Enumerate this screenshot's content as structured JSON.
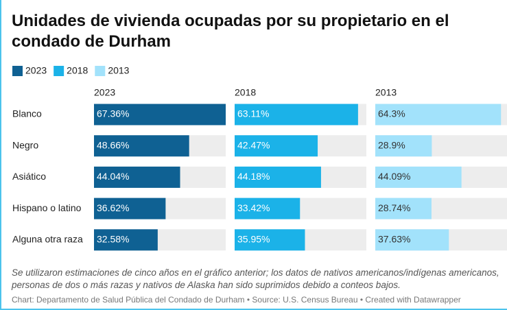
{
  "chart_data": {
    "type": "bar",
    "title": "Unidades de vivienda ocupadas por su propietario en el condado de Durham",
    "categories": [
      "Blanco",
      "Negro",
      "Asiático",
      "Hispano o latino",
      "Alguna otra raza"
    ],
    "series": [
      {
        "name": "2023",
        "color": "#0f6193",
        "values": [
          67.36,
          48.66,
          44.04,
          36.62,
          32.58
        ],
        "value_labels": [
          "67.36%",
          "48.66%",
          "44.04%",
          "36.62%",
          "32.58%"
        ]
      },
      {
        "name": "2018",
        "color": "#1bb2e8",
        "values": [
          63.11,
          42.47,
          44.18,
          33.42,
          35.95
        ],
        "value_labels": [
          "63.11%",
          "42.47%",
          "44.18%",
          "33.42%",
          "35.95%"
        ]
      },
      {
        "name": "2013",
        "color": "#a2e2fb",
        "values": [
          64.3,
          28.9,
          44.09,
          28.74,
          37.63
        ],
        "value_labels": [
          "64.3%",
          "28.9%",
          "44.09%",
          "28.74%",
          "37.63%"
        ]
      }
    ],
    "xlim": [
      0,
      67.36
    ],
    "note": "Se utilizaron estimaciones de cinco años en el gráfico anterior; los datos de nativos americanos/indígenas americanos, personas de dos o más razas y nativos de Alaska han sido suprimidos debido a conteos bajos.",
    "source": "Chart: Departamento de Salud Pública del Condado de Durham • Source: U.S. Census Bureau • Created with Datawrapper"
  }
}
